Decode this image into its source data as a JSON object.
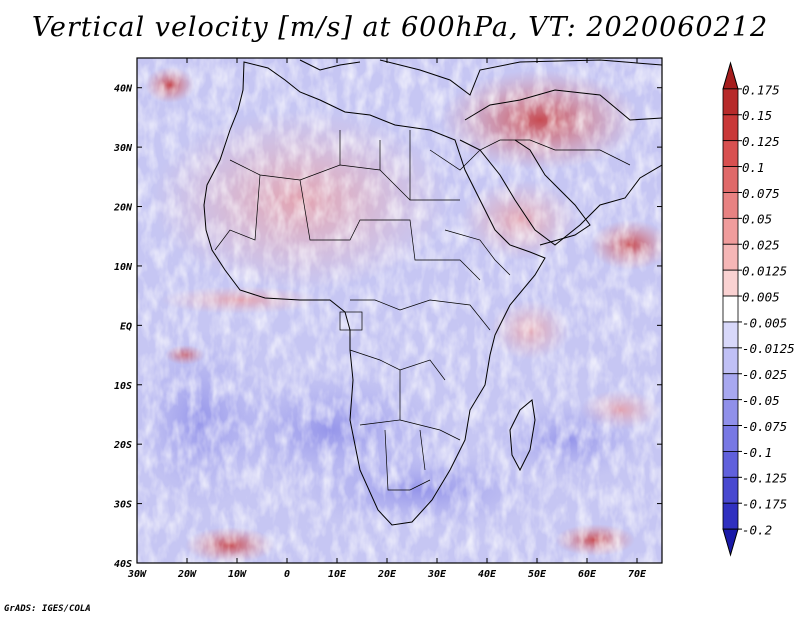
{
  "title": "Vertical velocity [m/s] at 600hPa, VT: 2020060212",
  "credit": "GrADS: IGES/COLA",
  "map": {
    "projection": "latlon",
    "lon_range": [
      -30,
      75
    ],
    "lat_range": [
      -40,
      45
    ],
    "x_ticks": [
      {
        "lon": -30,
        "label": "30W"
      },
      {
        "lon": -20,
        "label": "20W"
      },
      {
        "lon": -10,
        "label": "10W"
      },
      {
        "lon": 0,
        "label": "0"
      },
      {
        "lon": 10,
        "label": "10E"
      },
      {
        "lon": 20,
        "label": "20E"
      },
      {
        "lon": 30,
        "label": "30E"
      },
      {
        "lon": 40,
        "label": "40E"
      },
      {
        "lon": 50,
        "label": "50E"
      },
      {
        "lon": 60,
        "label": "60E"
      },
      {
        "lon": 70,
        "label": "70E"
      }
    ],
    "y_ticks": [
      {
        "lat": 40,
        "label": "40N"
      },
      {
        "lat": 30,
        "label": "30N"
      },
      {
        "lat": 20,
        "label": "20N"
      },
      {
        "lat": 10,
        "label": "10N"
      },
      {
        "lat": 0,
        "label": "EQ"
      },
      {
        "lat": -10,
        "label": "10S"
      },
      {
        "lat": -20,
        "label": "20S"
      },
      {
        "lat": -30,
        "label": "30S"
      },
      {
        "lat": -40,
        "label": "40S"
      }
    ],
    "field": "vertical velocity at 600hPa (m/s)"
  },
  "colorbar": {
    "labels": [
      "0.175",
      "0.15",
      "0.125",
      "0.1",
      "0.075",
      "0.05",
      "0.025",
      "0.0125",
      "0.005",
      "-0.005",
      "-0.0125",
      "-0.025",
      "-0.05",
      "-0.075",
      "-0.1",
      "-0.125",
      "-0.175",
      "-0.2"
    ],
    "colors": [
      "#a51d1d",
      "#b72a2a",
      "#c93838",
      "#d85050",
      "#e06969",
      "#e88282",
      "#f09c9c",
      "#f5b6b6",
      "#fad2d2",
      "#ffffff",
      "#d8d8fa",
      "#c0c0f5",
      "#a8a8f0",
      "#9090ea",
      "#7878e4",
      "#6060dc",
      "#4848d0",
      "#3030c0",
      "#1a1aa8"
    ]
  }
}
